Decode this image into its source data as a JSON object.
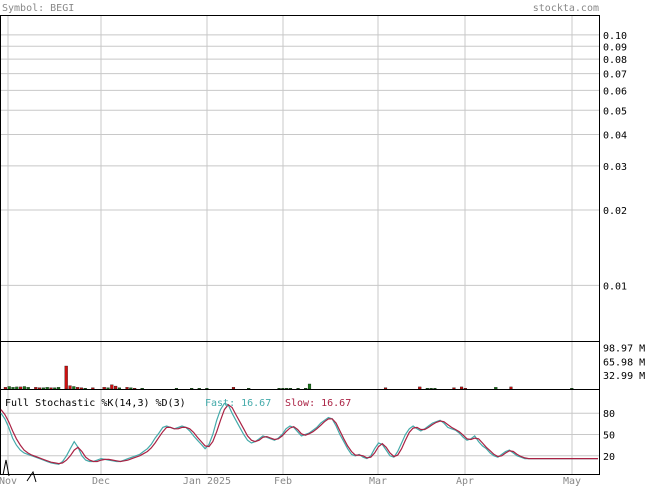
{
  "header": {
    "symbol_label": "Symbol: BEGI",
    "site": "stockta.com"
  },
  "colors": {
    "up": "#1a7a1a",
    "down": "#cc1111",
    "grid": "#c8c8c8",
    "fast": "#44aaaa",
    "slow": "#aa2244",
    "text": "#888888"
  },
  "chart_data": [
    {
      "type": "line",
      "title": "Symbol: BEGI",
      "yscale": "log",
      "ylim": [
        0.006,
        0.12
      ],
      "y_ticks": [
        "0.10",
        "0.09",
        "0.08",
        "0.07",
        "0.06",
        "0.05",
        "0.04",
        "0.03",
        "0.02",
        "0.01"
      ],
      "x_ticks": [
        "Nov",
        "Dec",
        "Jan 2025",
        "Feb",
        "Mar",
        "Apr",
        "May"
      ],
      "series": []
    },
    {
      "type": "bar",
      "y_ticks": [
        "98.97 M",
        "65.98 M",
        "32.99 M"
      ],
      "ylim": [
        0,
        110
      ],
      "volume_millions": [
        4,
        6,
        4,
        5,
        5,
        6,
        4,
        0,
        4,
        3,
        3,
        4,
        3,
        3,
        4,
        0,
        55,
        8,
        6,
        4,
        3,
        2,
        0,
        3,
        0,
        0,
        4,
        3,
        10,
        7,
        3,
        0,
        4,
        3,
        2,
        0,
        2,
        0,
        0,
        0,
        0,
        0,
        0,
        0,
        0,
        2,
        0,
        0,
        0,
        2,
        0,
        2,
        0,
        2,
        0,
        0,
        0,
        0,
        0,
        0,
        4,
        0,
        0,
        0,
        2,
        0,
        0,
        0,
        0,
        0,
        0,
        0,
        2,
        2,
        2,
        2,
        0,
        2,
        0,
        2,
        12,
        0,
        0,
        0,
        0,
        0,
        0,
        0,
        0,
        0,
        0,
        0,
        0,
        0,
        0,
        0,
        0,
        0,
        0,
        0,
        3,
        0,
        0,
        0,
        0,
        0,
        0,
        0,
        0,
        5,
        0,
        2,
        2,
        2,
        0,
        0,
        0,
        0,
        3,
        0,
        5,
        2,
        0,
        0,
        0,
        0,
        0,
        0,
        0,
        4,
        0,
        0,
        0,
        5,
        0,
        0,
        0,
        0,
        0,
        0,
        0,
        0,
        0,
        0,
        0,
        0,
        0,
        0,
        0,
        2,
        0,
        0,
        0,
        0,
        0,
        0
      ],
      "volume_up": [
        false,
        true,
        true,
        true,
        false,
        true,
        true,
        true,
        false,
        false,
        true,
        true,
        false,
        true,
        true,
        true,
        false,
        false,
        true,
        false,
        false,
        true,
        true,
        false,
        true,
        true,
        false,
        true,
        false,
        false,
        true,
        true,
        false,
        true,
        false,
        true,
        true,
        true,
        true,
        true,
        true,
        true,
        true,
        true,
        true,
        true,
        true,
        true,
        true,
        true,
        true,
        true,
        true,
        true,
        true,
        true,
        true,
        true,
        true,
        true,
        false,
        true,
        true,
        true,
        true,
        true,
        true,
        true,
        true,
        true,
        true,
        true,
        true,
        true,
        true,
        true,
        true,
        true,
        true,
        true,
        true,
        true,
        true,
        true,
        true,
        true,
        true,
        true,
        true,
        true,
        true,
        true,
        true,
        true,
        true,
        true,
        true,
        true,
        true,
        true,
        false,
        true,
        true,
        true,
        true,
        true,
        true,
        true,
        true,
        false,
        true,
        true,
        true,
        true,
        true,
        true,
        true,
        true,
        false,
        true,
        false,
        false,
        true,
        true,
        true,
        true,
        true,
        true,
        true,
        true,
        true,
        true,
        true,
        false,
        true,
        true,
        true,
        true,
        true,
        true,
        true,
        true,
        true,
        true,
        true,
        true,
        true,
        true,
        true,
        true,
        true,
        true,
        true,
        true,
        true,
        true
      ]
    },
    {
      "type": "line",
      "title": "Full Stochastic %K(14,3) %D(3)",
      "fast_label": "Fast: 16.67",
      "slow_label": "Slow: 16.67",
      "ylim": [
        0,
        100
      ],
      "y_ticks": [
        "80",
        "50",
        "20"
      ],
      "series": [
        {
          "name": "Fast",
          "values": [
            80,
            72,
            60,
            45,
            35,
            28,
            24,
            22,
            20,
            18,
            16,
            14,
            12,
            10,
            9,
            8,
            12,
            20,
            30,
            40,
            32,
            20,
            14,
            12,
            12,
            14,
            16,
            15,
            14,
            13,
            12,
            12,
            14,
            16,
            18,
            20,
            22,
            26,
            30,
            36,
            45,
            52,
            60,
            62,
            60,
            58,
            60,
            62,
            60,
            55,
            48,
            42,
            36,
            30,
            36,
            50,
            70,
            85,
            94,
            92,
            80,
            70,
            60,
            50,
            42,
            38,
            40,
            44,
            48,
            46,
            44,
            42,
            45,
            50,
            58,
            62,
            60,
            54,
            48,
            50,
            52,
            56,
            60,
            66,
            70,
            74,
            72,
            62,
            50,
            40,
            30,
            22,
            20,
            22,
            18,
            16,
            20,
            30,
            38,
            36,
            28,
            20,
            18,
            26,
            38,
            50,
            58,
            62,
            58,
            55,
            58,
            62,
            66,
            68,
            70,
            66,
            60,
            58,
            56,
            52,
            46,
            42,
            44,
            48,
            40,
            34,
            30,
            24,
            20,
            18,
            22,
            26,
            28,
            24,
            20,
            18,
            16,
            16,
            16,
            16,
            16,
            16,
            16,
            16,
            16,
            16,
            16,
            16,
            16,
            16,
            16,
            16,
            16,
            16,
            16,
            16
          ]
        },
        {
          "name": "Slow",
          "values": [
            85,
            78,
            68,
            55,
            44,
            35,
            28,
            24,
            21,
            19,
            17,
            15,
            13,
            11,
            10,
            9,
            10,
            14,
            20,
            28,
            32,
            26,
            18,
            14,
            12,
            12,
            14,
            15,
            15,
            14,
            13,
            12,
            13,
            14,
            16,
            18,
            20,
            23,
            26,
            31,
            38,
            46,
            54,
            60,
            60,
            58,
            58,
            60,
            60,
            58,
            53,
            46,
            40,
            34,
            33,
            40,
            54,
            70,
            85,
            92,
            88,
            78,
            68,
            58,
            48,
            42,
            40,
            42,
            46,
            47,
            45,
            43,
            44,
            48,
            54,
            59,
            61,
            57,
            51,
            49,
            51,
            54,
            58,
            63,
            68,
            72,
            72,
            66,
            55,
            44,
            34,
            26,
            21,
            21,
            20,
            17,
            18,
            24,
            33,
            37,
            32,
            24,
            19,
            21,
            30,
            42,
            53,
            59,
            60,
            57,
            57,
            60,
            64,
            67,
            69,
            68,
            64,
            60,
            57,
            54,
            49,
            44,
            43,
            45,
            44,
            38,
            32,
            27,
            22,
            19,
            20,
            24,
            27,
            26,
            22,
            19,
            17,
            16,
            16,
            16,
            16,
            16,
            16,
            16,
            16,
            16,
            16,
            16,
            16,
            16,
            16,
            16,
            16,
            16,
            16,
            16
          ]
        }
      ]
    }
  ]
}
